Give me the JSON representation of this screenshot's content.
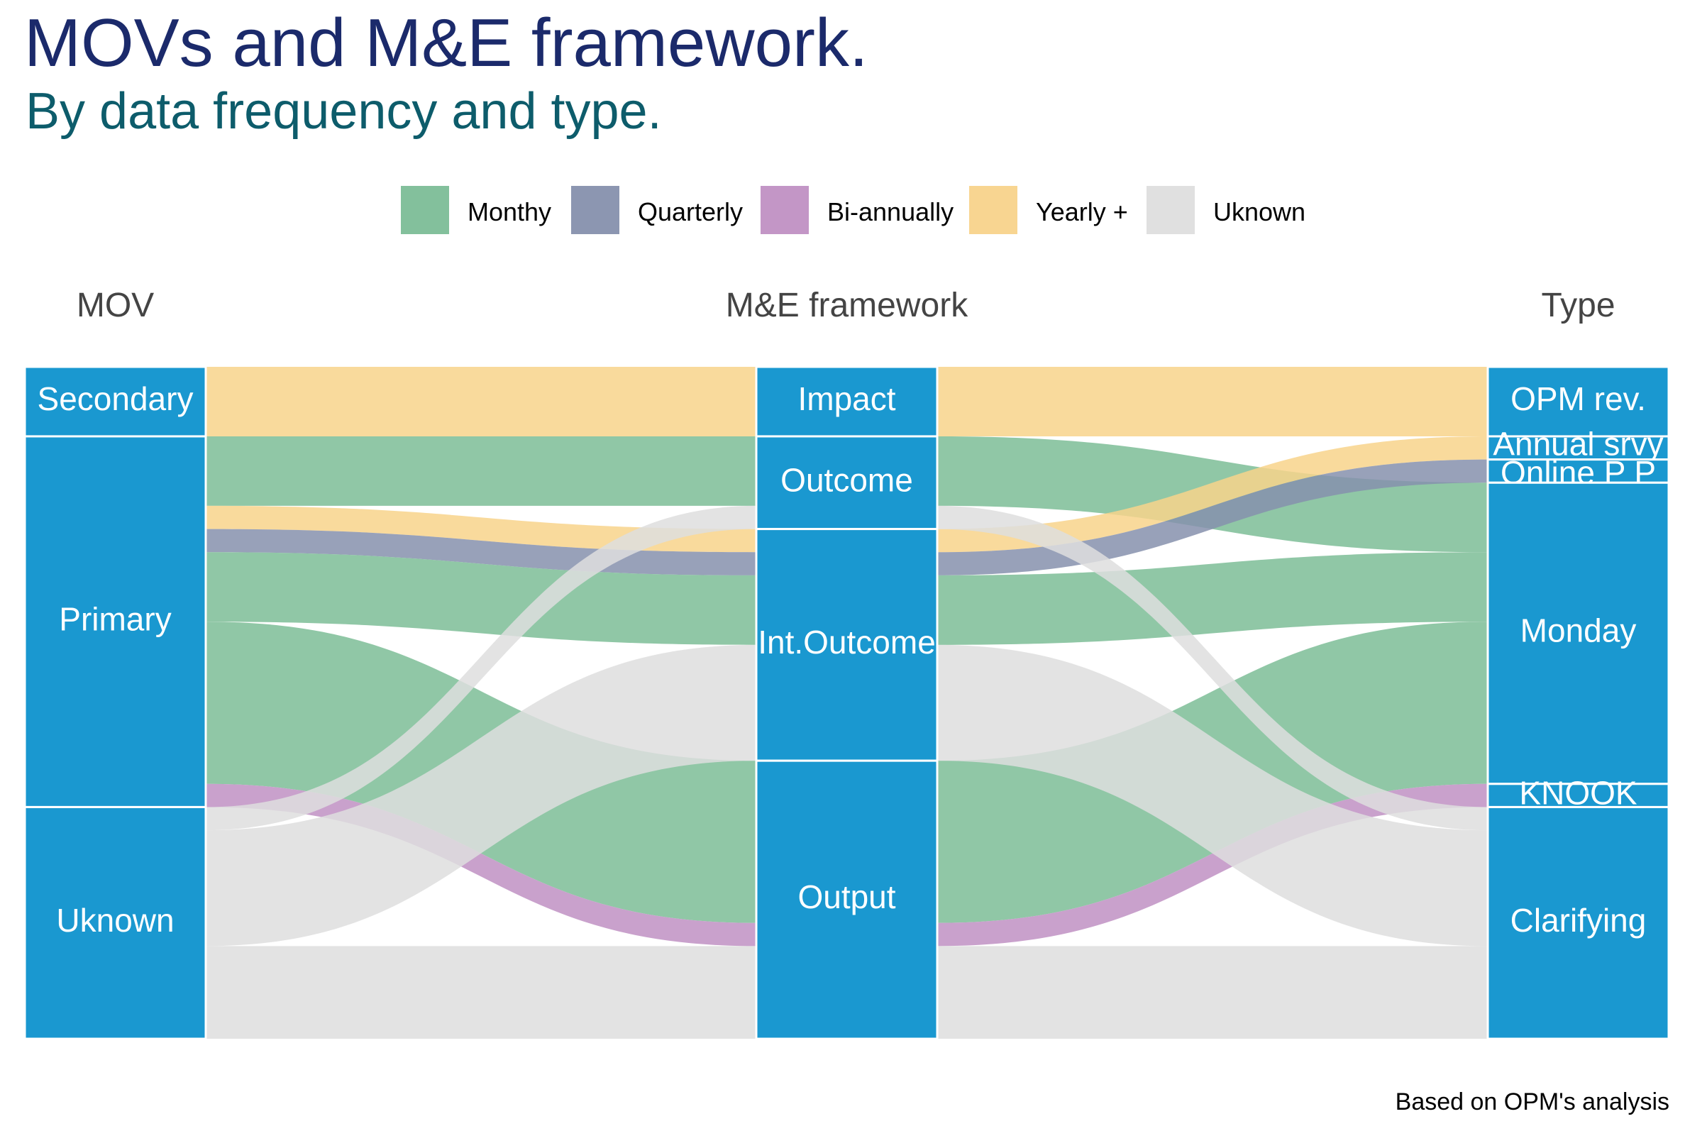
{
  "chart_data": {
    "type": "alluvial",
    "title": "MOVs and M&E framework.",
    "subtitle": "By data frequency and type.",
    "caption": "Based on OPM's analysis",
    "axes": [
      "MOV",
      "M&E framework",
      "Type"
    ],
    "legend": {
      "position": "top",
      "items": [
        {
          "label": "Monthy",
          "color": "#7cbd97"
        },
        {
          "label": "Quarterly",
          "color": "#8690ad"
        },
        {
          "label": "Bi-annually",
          "color": "#c090c3"
        },
        {
          "label": "Yearly +",
          "color": "#f8d38b"
        },
        {
          "label": "Uknown",
          "color": "#dedede"
        }
      ]
    },
    "strata": [
      [
        "Secondary",
        "Primary",
        "Uknown"
      ],
      [
        "Impact",
        "Outcome",
        "Int.Outcome",
        "Output"
      ],
      [
        "OPM rev.",
        "Annual srvy",
        "Online P P",
        "Monday",
        "KNOOK",
        "Clarifying"
      ]
    ],
    "flows": [
      {
        "path": [
          "Secondary",
          "Impact",
          "OPM rev."
        ],
        "frequency": "Yearly +",
        "value": 3
      },
      {
        "path": [
          "Primary",
          "Outcome",
          "Monday"
        ],
        "frequency": "Monthy",
        "value": 3
      },
      {
        "path": [
          "Primary",
          "Int.Outcome",
          "Annual srvy"
        ],
        "frequency": "Yearly +",
        "value": 1
      },
      {
        "path": [
          "Primary",
          "Int.Outcome",
          "Online P P"
        ],
        "frequency": "Quarterly",
        "value": 1
      },
      {
        "path": [
          "Primary",
          "Int.Outcome",
          "Monday"
        ],
        "frequency": "Monthy",
        "value": 3
      },
      {
        "path": [
          "Primary",
          "Output",
          "Monday"
        ],
        "frequency": "Monthy",
        "value": 7
      },
      {
        "path": [
          "Primary",
          "Output",
          "KNOOK"
        ],
        "frequency": "Bi-annually",
        "value": 1
      },
      {
        "path": [
          "Uknown",
          "Outcome",
          "Clarifying"
        ],
        "frequency": "Uknown",
        "value": 1
      },
      {
        "path": [
          "Uknown",
          "Int.Outcome",
          "Clarifying"
        ],
        "frequency": "Uknown",
        "value": 5
      },
      {
        "path": [
          "Uknown",
          "Output",
          "Clarifying"
        ],
        "frequency": "Uknown",
        "value": 4
      }
    ]
  }
}
